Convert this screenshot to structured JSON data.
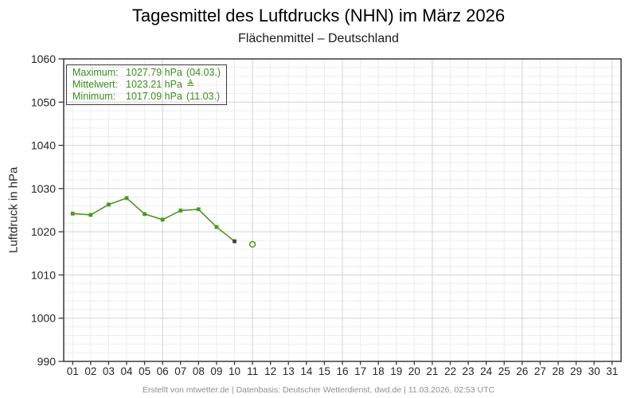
{
  "header": {
    "title": "Tagesmittel des Luftdrucks (NHN) im März 2026",
    "subtitle": "Flächenmittel – Deutschland"
  },
  "legend": {
    "rows": [
      {
        "label": "Maximum:",
        "value": "1027.79 hPa",
        "note": "(04.03.)"
      },
      {
        "label": "Mittelwert:",
        "value": "1023.21 hPa",
        "note": "≜"
      },
      {
        "label": "Minimum:",
        "value": "1017.09 hPa",
        "note": "(11.03.)"
      }
    ]
  },
  "footer": {
    "credit": "Erstellt von mtwetter.de | Datenbasis: Deutscher Wetterdienst, dwd.de | 11.03.2026, 02:53 UTC"
  },
  "chart_data": {
    "type": "line",
    "title": "Tagesmittel des Luftdrucks (NHN) im März 2026",
    "subtitle": "Flächenmittel – Deutschland",
    "ylabel": "Luftdruck in hPa",
    "ylim": [
      990,
      1060
    ],
    "y_major_step": 10,
    "y_minor_step": 2,
    "days_in_month": 31,
    "x_tick_labels": [
      "01",
      "02",
      "03",
      "04",
      "05",
      "06",
      "07",
      "08",
      "09",
      "10",
      "11",
      "12",
      "13",
      "14",
      "15",
      "16",
      "17",
      "18",
      "19",
      "20",
      "21",
      "22",
      "23",
      "24",
      "25",
      "26",
      "27",
      "28",
      "29",
      "30",
      "31"
    ],
    "x_dark_grid_days": [
      6,
      11,
      16,
      21,
      26,
      31
    ],
    "points": [
      {
        "day": 1,
        "value": 1024.2,
        "marker": "square"
      },
      {
        "day": 2,
        "value": 1023.9,
        "marker": "square"
      },
      {
        "day": 3,
        "value": 1026.3,
        "marker": "square"
      },
      {
        "day": 4,
        "value": 1027.79,
        "marker": "square"
      },
      {
        "day": 5,
        "value": 1024.1,
        "marker": "square"
      },
      {
        "day": 6,
        "value": 1022.8,
        "marker": "square"
      },
      {
        "day": 7,
        "value": 1024.9,
        "marker": "square"
      },
      {
        "day": 8,
        "value": 1025.2,
        "marker": "square"
      },
      {
        "day": 9,
        "value": 1021.1,
        "marker": "square"
      },
      {
        "day": 10,
        "value": 1017.8,
        "marker": "square-dark"
      },
      {
        "day": 11,
        "value": 1017.09,
        "marker": "open-circle",
        "connected": false
      }
    ],
    "stats": {
      "maximum_hpa": 1027.79,
      "maximum_date": "04.03.",
      "mean_hpa": 1023.21,
      "minimum_hpa": 1017.09,
      "minimum_date": "11.03."
    },
    "colors": {
      "line": "#4a9a22",
      "marker_dark": "#3f3f3f",
      "legend_text": "#3e8e1e",
      "grid_minor": "#ededed",
      "grid_major": "#d2d2d2",
      "frame": "#3a3a3a",
      "tick_label": "#262626",
      "footer_text": "#909090"
    },
    "legend_position": "top-left",
    "grid": true
  }
}
